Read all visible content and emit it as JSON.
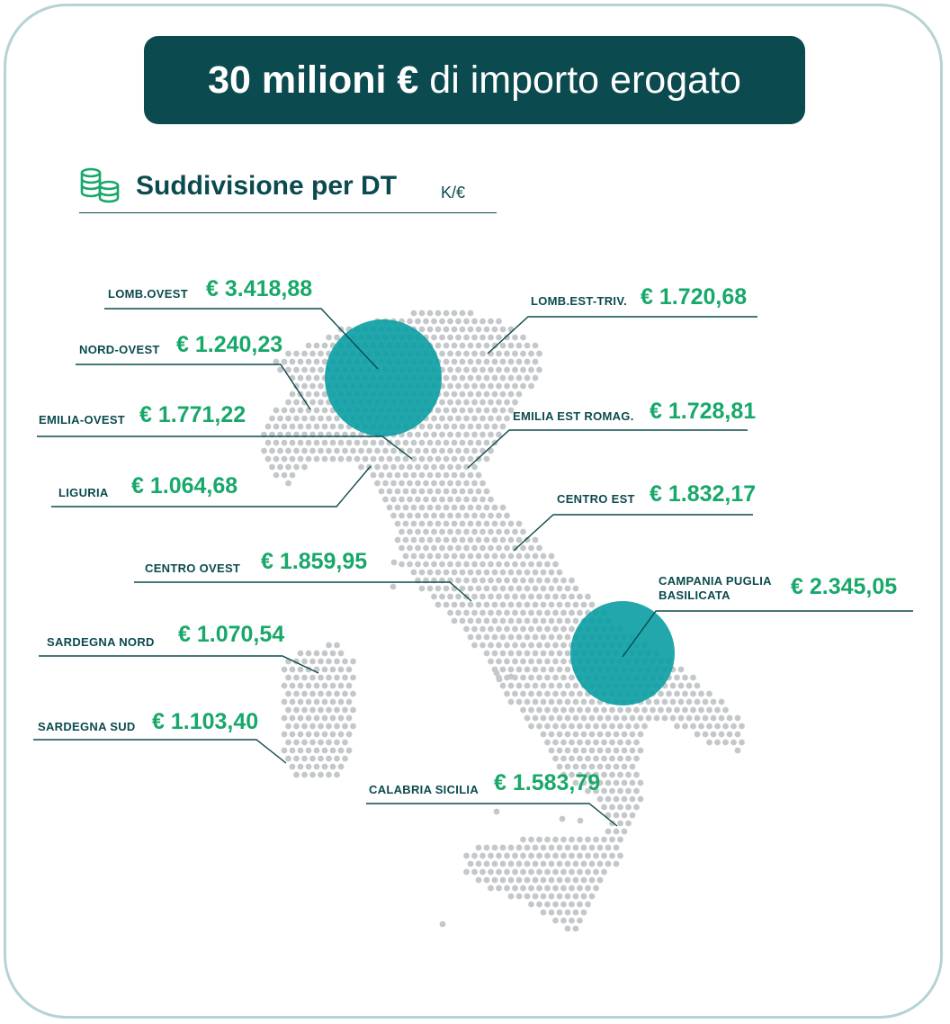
{
  "header": {
    "title_bold": "30 milioni €",
    "title_rest": "di importo erogato"
  },
  "section": {
    "title": "Suddivisione per DT",
    "unit": "K/€",
    "icon": "coins-icon"
  },
  "colors": {
    "dark": "#0b4a4e",
    "green": "#18a86a",
    "dots": "#c4c8ca",
    "bubble": "#0a9ea3",
    "frame": "#b5d3d4"
  },
  "regions": [
    {
      "id": "lomb-ovest",
      "label": "LOMB.OVEST",
      "value": "€ 3.418,88"
    },
    {
      "id": "nord-ovest",
      "label": "NORD-OVEST",
      "value": "€ 1.240,23"
    },
    {
      "id": "emilia-ovest",
      "label": "EMILIA-OVEST",
      "value": "€ 1.771,22"
    },
    {
      "id": "liguria",
      "label": "LIGURIA",
      "value": "€ 1.064,68"
    },
    {
      "id": "centro-ovest",
      "label": "CENTRO OVEST",
      "value": "€ 1.859,95"
    },
    {
      "id": "sardegna-nord",
      "label": "SARDEGNA NORD",
      "value": "€ 1.070,54"
    },
    {
      "id": "sardegna-sud",
      "label": "SARDEGNA SUD",
      "value": "€ 1.103,40"
    },
    {
      "id": "lomb-est-triv",
      "label": "LOMB.EST-TRIV.",
      "value": "€ 1.720,68"
    },
    {
      "id": "emilia-est-romag",
      "label": "EMILIA EST ROMAG.",
      "value": "€ 1.728,81"
    },
    {
      "id": "centro-est",
      "label": "CENTRO EST",
      "value": "€ 1.832,17"
    },
    {
      "id": "campania-puglia-basilicata",
      "label": "CAMPANIA PUGLIA\nBASILICATA",
      "value": "€ 2.345,05"
    },
    {
      "id": "calabria-sicilia",
      "label": "CALABRIA SICILIA",
      "value": "€ 1.583,79"
    }
  ]
}
